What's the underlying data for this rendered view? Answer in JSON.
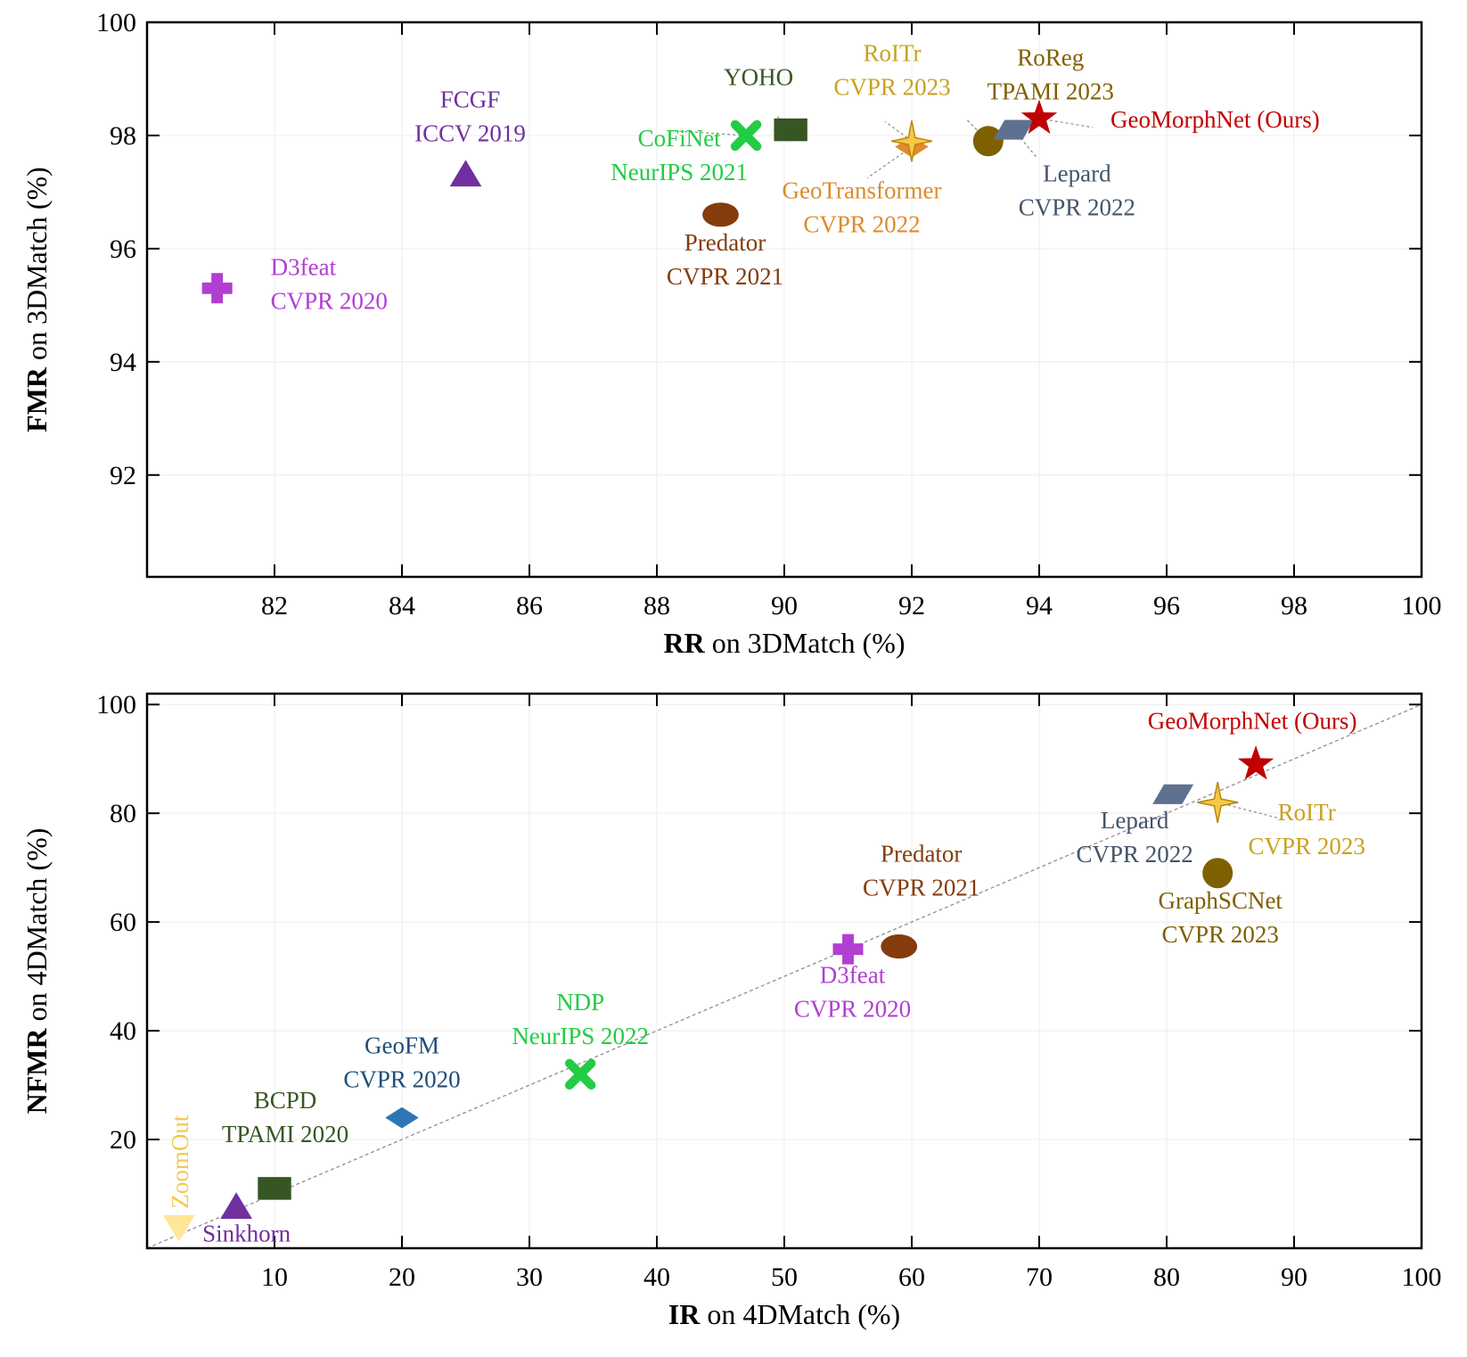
{
  "chart_data": [
    {
      "type": "scatter",
      "xlabel_bold": "RR",
      "xlabel_rest": " on 3DMatch (%)",
      "ylabel_bold": "FMR",
      "ylabel_rest": " on 3DMatch (%)",
      "xlim": [
        80,
        100
      ],
      "ylim": [
        90.2,
        100
      ],
      "xticks": [
        82,
        84,
        86,
        88,
        90,
        92,
        94,
        96,
        98,
        100
      ],
      "yticks": [
        92,
        94,
        96,
        98,
        100
      ],
      "grid": true,
      "diagonal": false,
      "points": [
        {
          "name": "D3feat",
          "venue": "CVPR 2020",
          "x": 81.1,
          "y": 95.3,
          "marker": "plus",
          "color": "#B13FD1",
          "label_color": "#B13FD1",
          "label_pos": "right"
        },
        {
          "name": "FCGF",
          "venue": "ICCV 2019",
          "x": 85.0,
          "y": 97.3,
          "marker": "triangle-up",
          "color": "#7030A0",
          "label_color": "#7030A0",
          "label_pos": "above"
        },
        {
          "name": "CoFiNet",
          "venue": "NeurIPS 2021",
          "x": 89.4,
          "y": 98.0,
          "marker": "x",
          "color": "#22CC44",
          "label_color": "#22CC44",
          "label_pos": "below-left"
        },
        {
          "name": "YOHO",
          "venue": "",
          "x": 90.1,
          "y": 98.1,
          "marker": "square",
          "color": "#375623",
          "label_color": "#375623",
          "label_pos": "above"
        },
        {
          "name": "Predator",
          "venue": "CVPR 2021",
          "x": 89.0,
          "y": 96.6,
          "marker": "ellipse",
          "color": "#843C0C",
          "label_color": "#843C0C",
          "label_pos": "below"
        },
        {
          "name": "GeoTransformer",
          "venue": "CVPR 2022",
          "x": 92.0,
          "y": 97.8,
          "marker": "diamond",
          "color": "#E08A2A",
          "label_color": "#E08A2A",
          "label_pos": "below-left"
        },
        {
          "name": "RoITr",
          "venue": "CVPR 2023",
          "x": 92.0,
          "y": 97.9,
          "marker": "star4",
          "color": "#F6C845",
          "label_color": "#C9A21F",
          "label_pos": "above-left"
        },
        {
          "name": "RoReg",
          "venue": "TPAMI 2023",
          "x": 93.2,
          "y": 97.9,
          "marker": "circle",
          "color": "#7F6000",
          "label_color": "#7F6000",
          "label_pos": "above"
        },
        {
          "name": "Lepard",
          "venue": "CVPR 2022",
          "x": 93.6,
          "y": 98.1,
          "marker": "parallelogram",
          "color": "#5F7190",
          "label_color": "#44546A",
          "label_pos": "below"
        },
        {
          "name": "GeoMorphNet (Ours)",
          "venue": "",
          "x": 94.0,
          "y": 98.3,
          "marker": "star5",
          "color": "#C00000",
          "label_color": "#C00000",
          "label_pos": "right"
        }
      ]
    },
    {
      "type": "scatter",
      "xlabel_bold": "IR",
      "xlabel_rest": " on 4DMatch (%)",
      "ylabel_bold": "NFMR",
      "ylabel_rest": " on 4DMatch (%)",
      "xlim": [
        0,
        100
      ],
      "ylim": [
        0,
        102
      ],
      "xticks": [
        10,
        20,
        30,
        40,
        50,
        60,
        70,
        80,
        90,
        100
      ],
      "yticks": [
        20,
        40,
        60,
        80,
        100
      ],
      "grid": true,
      "diagonal": true,
      "points": [
        {
          "name": "ZoomOut",
          "venue": "",
          "x": 2.5,
          "y": 4.0,
          "marker": "triangle-down",
          "color": "#FFE699",
          "label_color": "#F2C94C",
          "label_pos": "vertical"
        },
        {
          "name": "Sinkhorn",
          "venue": "",
          "x": 7.0,
          "y": 7.5,
          "marker": "triangle-up",
          "color": "#7030A0",
          "label_color": "#7030A0",
          "label_pos": "below-right"
        },
        {
          "name": "BCPD",
          "venue": "TPAMI 2020",
          "x": 10.0,
          "y": 11.0,
          "marker": "square",
          "color": "#375623",
          "label_color": "#375623",
          "label_pos": "above"
        },
        {
          "name": "GeoFM",
          "venue": "CVPR 2020",
          "x": 20.0,
          "y": 24.0,
          "marker": "diamond",
          "color": "#2E75B6",
          "label_color": "#1F4E79",
          "label_pos": "above"
        },
        {
          "name": "NDP",
          "venue": "NeurIPS 2022",
          "x": 34.0,
          "y": 32.0,
          "marker": "x",
          "color": "#22CC44",
          "label_color": "#22CC44",
          "label_pos": "above"
        },
        {
          "name": "D3feat",
          "venue": "CVPR 2020",
          "x": 55.0,
          "y": 55.0,
          "marker": "plus",
          "color": "#B13FD1",
          "label_color": "#B13FD1",
          "label_pos": "below"
        },
        {
          "name": "Predator",
          "venue": "CVPR 2021",
          "x": 59.0,
          "y": 55.5,
          "marker": "ellipse",
          "color": "#843C0C",
          "label_color": "#843C0C",
          "label_pos": "above"
        },
        {
          "name": "Lepard",
          "venue": "CVPR 2022",
          "x": 80.5,
          "y": 83.5,
          "marker": "parallelogram",
          "color": "#5F7190",
          "label_color": "#44546A",
          "label_pos": "below-left"
        },
        {
          "name": "RoITr",
          "venue": "CVPR 2023",
          "x": 84.0,
          "y": 82.0,
          "marker": "star4",
          "color": "#F6C845",
          "label_color": "#C9A21F",
          "label_pos": "below-right"
        },
        {
          "name": "GraphSCNet",
          "venue": "CVPR 2023",
          "x": 84.0,
          "y": 69.0,
          "marker": "circle",
          "color": "#7F6000",
          "label_color": "#7F6000",
          "label_pos": "below"
        },
        {
          "name": "GeoMorphNet (Ours)",
          "venue": "",
          "x": 87.0,
          "y": 89.0,
          "marker": "star5",
          "color": "#C00000",
          "label_color": "#C00000",
          "label_pos": "above-left"
        }
      ]
    }
  ]
}
